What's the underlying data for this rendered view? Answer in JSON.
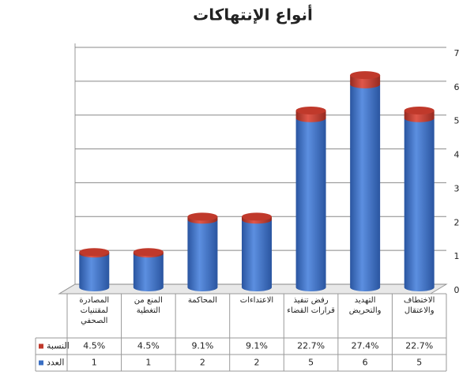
{
  "chart_data": {
    "type": "bar",
    "stacked": true,
    "title": "أنواع الإنتهاكات",
    "categories": [
      "المصادرة لمقتنيات الصحفي",
      "المنع من التغطية",
      "المحاكمة",
      "الاعتداءات",
      "رفض تنفيذ قرارات القضاء",
      "التهديد والتحريض",
      "الاختطاف والاعتقال"
    ],
    "series": [
      {
        "name": "العدد",
        "color": "#3a6fc4",
        "values": [
          1,
          1,
          2,
          2,
          5,
          6,
          5
        ]
      },
      {
        "name": "النسبة",
        "color": "#c0392b",
        "values": [
          0.045,
          0.045,
          0.091,
          0.091,
          0.227,
          0.274,
          0.227
        ],
        "value_labels": [
          "4.5%",
          "4.5%",
          "9.1%",
          "9.1%",
          "22.7%",
          "27.4%",
          "22.7%"
        ]
      }
    ],
    "ylim": [
      0,
      7
    ],
    "yticks": [
      0,
      1,
      2,
      3,
      4,
      5,
      6,
      7
    ],
    "grid": true
  }
}
